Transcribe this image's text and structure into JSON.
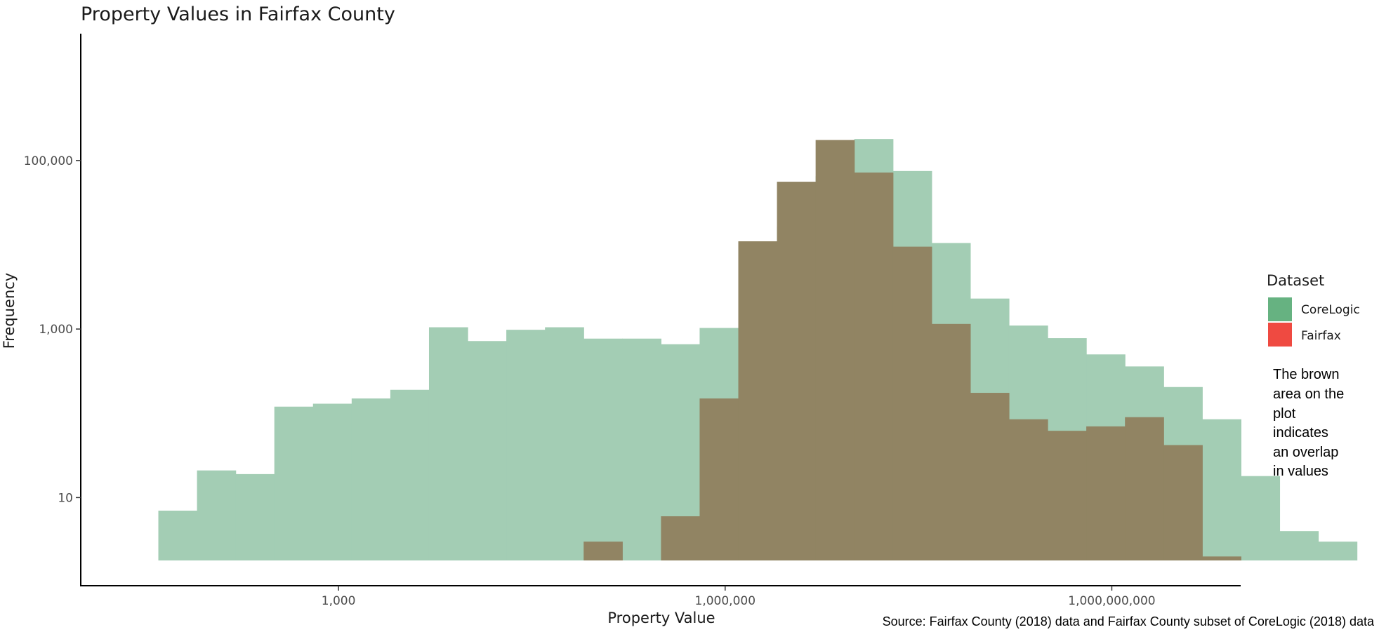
{
  "chart_data": {
    "type": "bar",
    "subtype": "overlapping-histogram",
    "title": "Property Values in Fairfax County",
    "xlabel": "Property Value",
    "ylabel": "Frequency",
    "x_scale": "log10",
    "y_scale": "log10",
    "xlim": [
      10,
      10000000000
    ],
    "ylim": [
      0.9,
      3200000
    ],
    "grid": false,
    "legend_placement": "right",
    "x_ticks": [
      {
        "value": 1000,
        "label": "1,000"
      },
      {
        "value": 1000000,
        "label": "1,000,000"
      },
      {
        "value": 1000000000,
        "label": "1,000,000,000"
      }
    ],
    "y_ticks": [
      {
        "value": 10,
        "label": "10"
      },
      {
        "value": 1000,
        "label": "1,000"
      },
      {
        "value": 100000,
        "label": "100,000"
      }
    ],
    "bins_start": 40,
    "bin_width_log10": 0.3,
    "series": [
      {
        "name": "CoreLogic",
        "color": "#a3cdb4",
        "values": [
          7,
          21,
          19,
          120,
          130,
          150,
          190,
          1050,
          720,
          980,
          1050,
          770,
          770,
          660,
          1030,
          0,
          16500,
          65000,
          180000,
          75000,
          10500,
          2300,
          1100,
          780,
          500,
          360,
          205,
          85,
          18,
          4,
          3
        ]
      },
      {
        "name": "Fairfax",
        "color": "#918463",
        "values": [
          0,
          0,
          0,
          0,
          0,
          0,
          0,
          0,
          0,
          0,
          0,
          3,
          0,
          6,
          150,
          11000,
          56000,
          175000,
          72000,
          9500,
          1150,
          175,
          85,
          62,
          70,
          90,
          42,
          2,
          0,
          0,
          0
        ]
      }
    ],
    "legend": {
      "title": "Dataset",
      "items": [
        {
          "label": "CoreLogic",
          "color": "#66b281"
        },
        {
          "label": "Fairfax",
          "color": "#ef4a41"
        }
      ]
    },
    "annotation": [
      "The brown",
      "area on the",
      "plot",
      "indicates",
      "an overlap",
      "in values"
    ],
    "caption": "Source: Fairfax County (2018) data and Fairfax County subset of CoreLogic (2018) data"
  }
}
